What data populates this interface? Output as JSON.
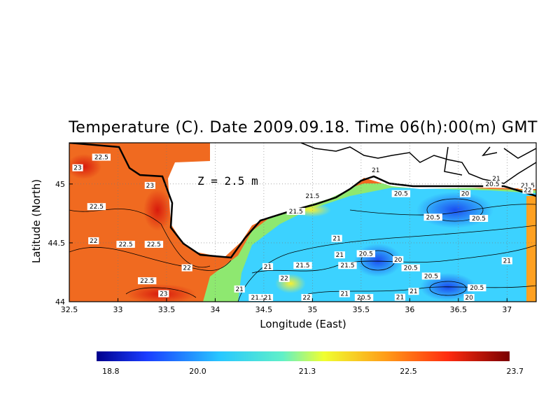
{
  "title": "Temperature (C). Date 2009.09.18. Time 06(h):00(m) GMT",
  "depth_label": "Z = 2.5 m",
  "axes": {
    "xlabel": "Longitude (East)",
    "ylabel": "Latitude (North)",
    "x_ticks": [
      "32.5",
      "33",
      "33.5",
      "34",
      "34.5",
      "35",
      "35.5",
      "36",
      "36.5",
      "37"
    ],
    "y_ticks": [
      "44",
      "44.5",
      "45"
    ],
    "x_range": [
      32.5,
      37.3
    ],
    "y_range": [
      44.0,
      45.35
    ]
  },
  "colorbar": {
    "ticks": [
      "18.8",
      "20.0",
      "21.3",
      "22.5",
      "23.7"
    ],
    "range": [
      18.8,
      23.7
    ]
  },
  "colors": {
    "land": "#ffffff",
    "coast": "#000000",
    "warm": "#f05a1c",
    "cool": "#33c8ff"
  },
  "contour_labels": [
    {
      "text": "22.5",
      "lon": 32.83,
      "lat": 45.21
    },
    {
      "text": "23",
      "lon": 32.55,
      "lat": 45.12
    },
    {
      "text": "23",
      "lon": 33.33,
      "lat": 44.97
    },
    {
      "text": "22.5",
      "lon": 32.78,
      "lat": 44.79
    },
    {
      "text": "22",
      "lon": 32.75,
      "lat": 44.5
    },
    {
      "text": "22.5",
      "lon": 33.08,
      "lat": 44.47
    },
    {
      "text": "22.5",
      "lon": 33.37,
      "lat": 44.47
    },
    {
      "text": "22",
      "lon": 33.71,
      "lat": 44.27
    },
    {
      "text": "22.5",
      "lon": 33.3,
      "lat": 44.16
    },
    {
      "text": "23",
      "lon": 33.47,
      "lat": 44.05
    },
    {
      "text": "21",
      "lon": 34.25,
      "lat": 44.09
    },
    {
      "text": "21.5",
      "lon": 34.44,
      "lat": 44.01
    },
    {
      "text": "21",
      "lon": 34.54,
      "lat": 44.0
    },
    {
      "text": "21",
      "lon": 34.54,
      "lat": 44.28
    },
    {
      "text": "22",
      "lon": 34.71,
      "lat": 44.18
    },
    {
      "text": "21.5",
      "lon": 34.9,
      "lat": 44.29
    },
    {
      "text": "22",
      "lon": 34.94,
      "lat": 44.0
    },
    {
      "text": "21.5",
      "lon": 34.83,
      "lat": 44.75
    },
    {
      "text": "21.5",
      "lon": 35.0,
      "lat": 44.88
    },
    {
      "text": "21",
      "lon": 35.25,
      "lat": 44.52
    },
    {
      "text": "21",
      "lon": 35.28,
      "lat": 44.38
    },
    {
      "text": "21.5",
      "lon": 35.36,
      "lat": 44.29
    },
    {
      "text": "21",
      "lon": 35.33,
      "lat": 44.05
    },
    {
      "text": "20.5",
      "lon": 35.55,
      "lat": 44.39
    },
    {
      "text": "20.5",
      "lon": 35.53,
      "lat": 43.99
    },
    {
      "text": "21",
      "lon": 35.65,
      "lat": 45.1
    },
    {
      "text": "20.5",
      "lon": 35.91,
      "lat": 44.9
    },
    {
      "text": "20",
      "lon": 35.88,
      "lat": 44.34
    },
    {
      "text": "20.5",
      "lon": 36.01,
      "lat": 44.27
    },
    {
      "text": "21",
      "lon": 35.9,
      "lat": 44.02
    },
    {
      "text": "21",
      "lon": 36.04,
      "lat": 44.07
    },
    {
      "text": "20.5",
      "lon": 36.24,
      "lat": 44.7
    },
    {
      "text": "20.5",
      "lon": 36.22,
      "lat": 44.2
    },
    {
      "text": "20",
      "lon": 36.57,
      "lat": 44.9
    },
    {
      "text": "20.5",
      "lon": 36.71,
      "lat": 44.69
    },
    {
      "text": "20.5",
      "lon": 36.69,
      "lat": 44.1
    },
    {
      "text": "20",
      "lon": 36.61,
      "lat": 44.0
    },
    {
      "text": "21",
      "lon": 36.89,
      "lat": 45.03
    },
    {
      "text": "20.5",
      "lon": 36.85,
      "lat": 44.98
    },
    {
      "text": "21.5",
      "lon": 37.25,
      "lat": 44.97
    },
    {
      "text": "22",
      "lon": 37.32,
      "lat": 44.93
    },
    {
      "text": "21",
      "lon": 37.0,
      "lat": 44.33
    }
  ]
}
